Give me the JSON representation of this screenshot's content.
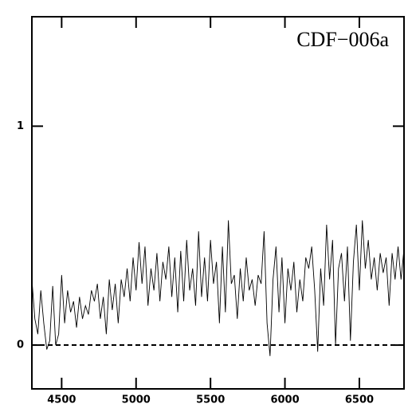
{
  "chart_data": {
    "type": "line",
    "annotation": "CDF−006a",
    "x": [
      4300,
      4320,
      4340,
      4360,
      4380,
      4400,
      4420,
      4440,
      4460,
      4480,
      4500,
      4520,
      4540,
      4560,
      4580,
      4600,
      4620,
      4640,
      4660,
      4680,
      4700,
      4720,
      4740,
      4760,
      4780,
      4800,
      4820,
      4840,
      4860,
      4880,
      4900,
      4920,
      4940,
      4960,
      4980,
      5000,
      5020,
      5040,
      5060,
      5080,
      5100,
      5120,
      5140,
      5160,
      5180,
      5200,
      5220,
      5240,
      5260,
      5280,
      5300,
      5320,
      5340,
      5360,
      5380,
      5400,
      5420,
      5440,
      5460,
      5480,
      5500,
      5520,
      5540,
      5560,
      5580,
      5600,
      5620,
      5640,
      5660,
      5680,
      5700,
      5720,
      5740,
      5760,
      5780,
      5800,
      5820,
      5840,
      5860,
      5880,
      5900,
      5920,
      5940,
      5960,
      5980,
      6000,
      6020,
      6040,
      6060,
      6080,
      6100,
      6120,
      6140,
      6160,
      6180,
      6200,
      6220,
      6240,
      6260,
      6280,
      6300,
      6320,
      6340,
      6360,
      6380,
      6400,
      6420,
      6440,
      6460,
      6480,
      6500,
      6520,
      6540,
      6560,
      6580,
      6600,
      6620,
      6640,
      6660,
      6680,
      6700,
      6720,
      6740,
      6760,
      6780,
      6800
    ],
    "series": [
      {
        "color": "#000000",
        "values": [
          0.3,
          0.12,
          0.05,
          0.25,
          0.1,
          -0.02,
          0.02,
          0.27,
          0.0,
          0.05,
          0.32,
          0.1,
          0.25,
          0.15,
          0.2,
          0.08,
          0.22,
          0.12,
          0.18,
          0.14,
          0.25,
          0.2,
          0.28,
          0.12,
          0.22,
          0.05,
          0.3,
          0.16,
          0.28,
          0.1,
          0.3,
          0.22,
          0.35,
          0.2,
          0.4,
          0.25,
          0.47,
          0.28,
          0.45,
          0.18,
          0.35,
          0.25,
          0.42,
          0.2,
          0.38,
          0.3,
          0.45,
          0.22,
          0.4,
          0.15,
          0.43,
          0.2,
          0.48,
          0.25,
          0.35,
          0.18,
          0.52,
          0.22,
          0.4,
          0.2,
          0.48,
          0.28,
          0.38,
          0.1,
          0.45,
          0.15,
          0.57,
          0.28,
          0.32,
          0.12,
          0.35,
          0.2,
          0.4,
          0.25,
          0.3,
          0.18,
          0.32,
          0.28,
          0.52,
          0.1,
          -0.05,
          0.3,
          0.45,
          0.15,
          0.4,
          0.1,
          0.35,
          0.25,
          0.38,
          0.15,
          0.3,
          0.2,
          0.4,
          0.35,
          0.45,
          0.25,
          -0.03,
          0.35,
          0.18,
          0.55,
          0.3,
          0.48,
          0.0,
          0.35,
          0.42,
          0.2,
          0.45,
          0.02,
          0.38,
          0.55,
          0.25,
          0.57,
          0.35,
          0.48,
          0.3,
          0.4,
          0.25,
          0.42,
          0.33,
          0.4,
          0.18,
          0.42,
          0.3,
          0.45,
          0.3,
          0.44
        ]
      }
    ],
    "xlim": [
      4300,
      6800
    ],
    "xticks": [
      4500,
      5000,
      5500,
      6000,
      6500
    ],
    "ylim": [
      -0.2,
      1.5
    ],
    "yticks": [
      0,
      1
    ],
    "hline": 0,
    "hline_style": "dashed"
  }
}
